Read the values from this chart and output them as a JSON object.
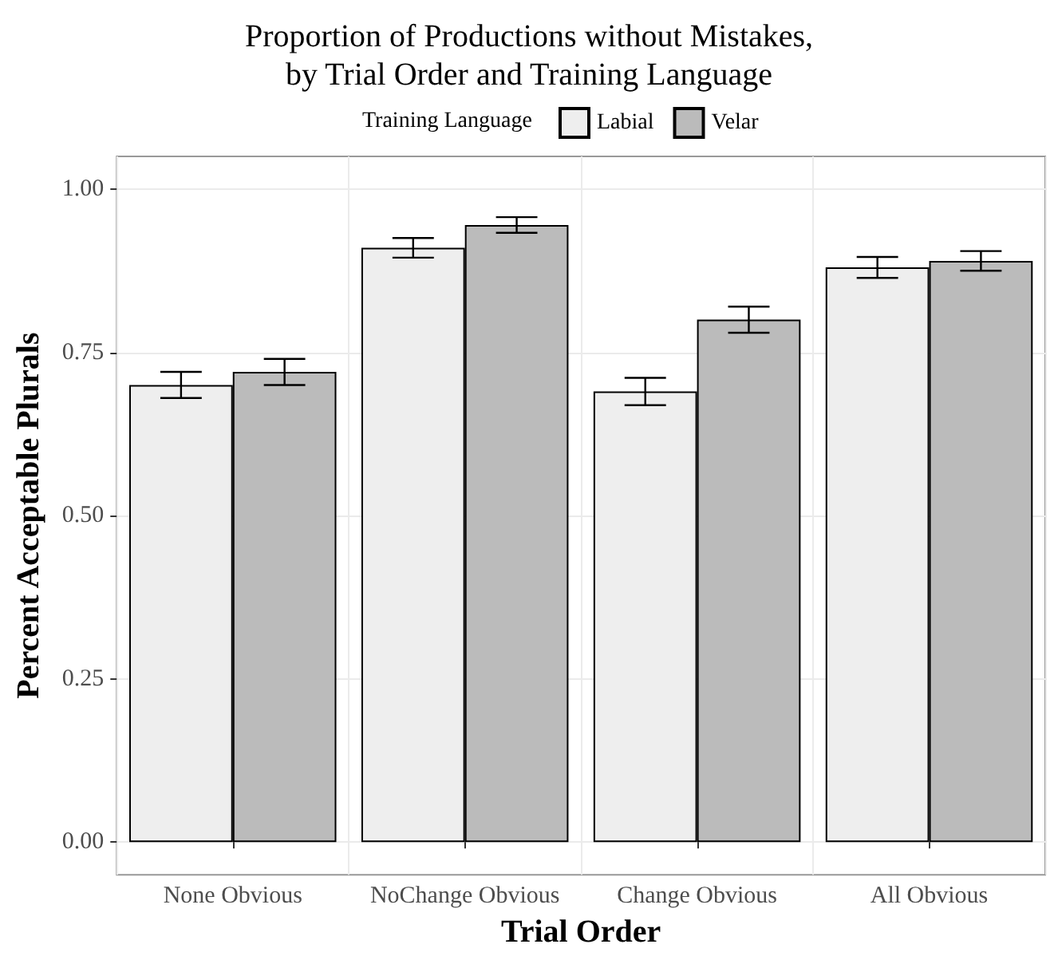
{
  "chart_data": {
    "type": "bar",
    "title": "Proportion of Productions without Mistakes,\nby Trial Order and Training Language",
    "xlabel": "Trial Order",
    "ylabel": "Percent Acceptable Plurals",
    "legend_title": "Training Language",
    "legend": "top",
    "categories": [
      "None Obvious",
      "NoChange Obvious",
      "Change Obvious",
      "All Obvious"
    ],
    "series": [
      {
        "name": "Labial",
        "color": "#eeeeee",
        "values": [
          0.7,
          0.91,
          0.69,
          0.88
        ],
        "errors": [
          0.02,
          0.015,
          0.021,
          0.016
        ]
      },
      {
        "name": "Velar",
        "color": "#bbbbbb",
        "values": [
          0.72,
          0.945,
          0.8,
          0.89
        ],
        "errors": [
          0.02,
          0.012,
          0.02,
          0.015
        ]
      }
    ],
    "ylim": [
      -0.05,
      1.05
    ],
    "yticks": [
      {
        "value": 0,
        "label": "0.00"
      },
      {
        "value": 0.25,
        "label": "0.25"
      },
      {
        "value": 0.5,
        "label": "0.50"
      },
      {
        "value": 0.75,
        "label": "0.75"
      },
      {
        "value": 1,
        "label": "1.00"
      }
    ],
    "grid": true
  }
}
